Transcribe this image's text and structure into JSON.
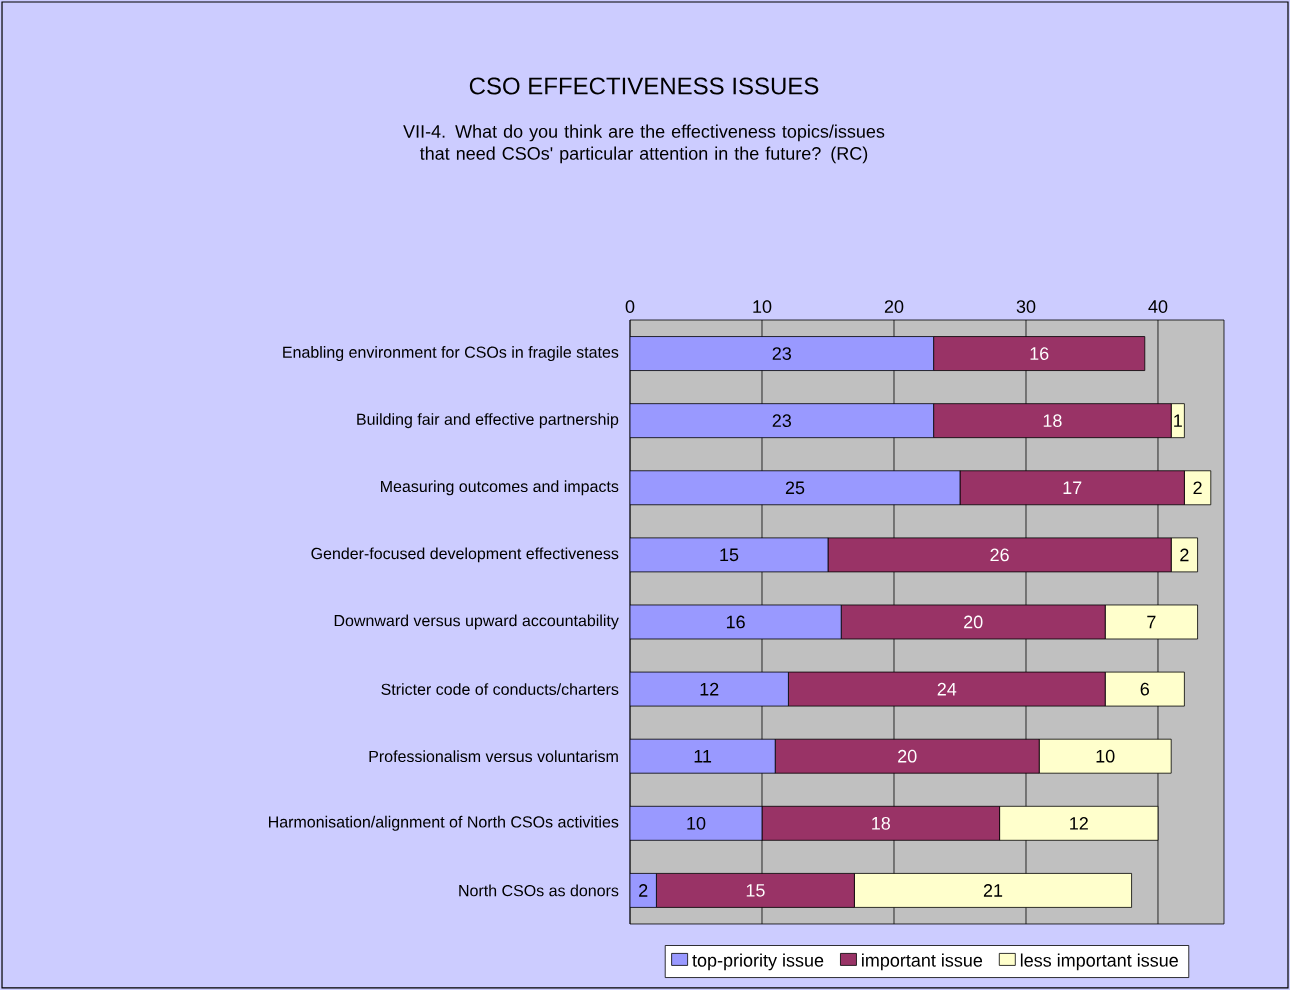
{
  "chart_data": {
    "type": "bar",
    "orientation": "horizontal",
    "stacked": true,
    "title": "CSO EFFECTIVENESS ISSUES",
    "subtitle": "VII-4. What do you think are the effectiveness topics/issues that need CSOs' particular attention in the future? (RC)",
    "categories": [
      "Enabling environment for CSOs in fragile states",
      "Building fair and effective partnership",
      "Measuring outcomes and impacts",
      "Gender-focused development effectiveness",
      "Downward versus upward accountability",
      "Stricter code of conducts/charters",
      "Professionalism versus voluntarism",
      "Harmonisation/alignment of North CSOs activities",
      "North CSOs as donors"
    ],
    "series": [
      {
        "name": "top-priority issue",
        "color": "#9999ff",
        "values": [
          23,
          23,
          25,
          15,
          16,
          12,
          11,
          10,
          2
        ]
      },
      {
        "name": "important issue",
        "color": "#993366",
        "values": [
          16,
          18,
          17,
          26,
          20,
          24,
          20,
          18,
          15
        ]
      },
      {
        "name": "less important issue",
        "color": "#ffffcc",
        "values": [
          null,
          1,
          2,
          2,
          7,
          6,
          10,
          12,
          21
        ]
      }
    ],
    "xlim": [
      0,
      45
    ],
    "xticks": [
      0,
      10,
      20,
      30,
      40
    ],
    "grid": "x",
    "legend": "bottom",
    "data_labels": true
  }
}
